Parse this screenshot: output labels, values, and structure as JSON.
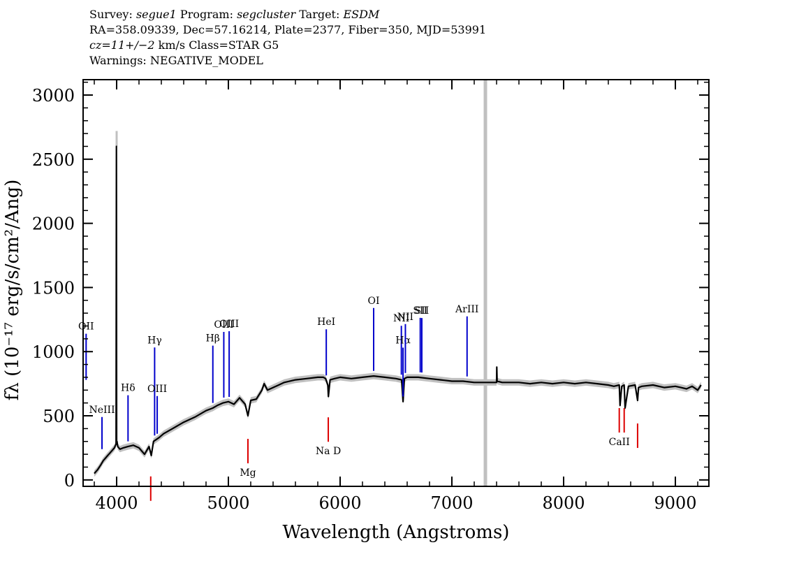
{
  "header": {
    "survey_label": "Survey:",
    "survey_value": "segue1",
    "program_label": "Program:",
    "program_value": "segcluster",
    "target_label": "Target:",
    "target_value": "ESDM",
    "line2": "RA=358.09339, Dec=57.16214, Plate=2377, Fiber=350, MJD=53991",
    "cz_label": "cz=11+/−2",
    "cz_rest": " km/s Class=STAR G5",
    "warnings": "Warnings: NEGATIVE_MODEL"
  },
  "chart_data": {
    "type": "line",
    "title": "",
    "xlabel": "Wavelength (Angstroms)",
    "ylabel": "fλ (10⁻¹⁷ erg/s/cm²/Ang)",
    "xlim": [
      3700,
      9300
    ],
    "ylim": [
      -50,
      3120
    ],
    "x_ticks": [
      4000,
      5000,
      6000,
      7000,
      8000,
      9000
    ],
    "y_ticks": [
      0,
      500,
      1000,
      1500,
      2000,
      2500,
      3000
    ],
    "x_tick_labels": [
      "4000",
      "5000",
      "6000",
      "7000",
      "8000",
      "9000"
    ],
    "y_tick_labels": [
      "0",
      "500",
      "1000",
      "1500",
      "2000",
      "2500",
      "3000"
    ],
    "gap_marker_wavelength": 7300,
    "series": [
      {
        "name": "flux",
        "color": "#000000",
        "x": [
          3800,
          3830,
          3860,
          3880,
          3900,
          3920,
          3940,
          3960,
          3980,
          3995,
          3998,
          4000,
          4003,
          4010,
          4030,
          4060,
          4100,
          4150,
          4200,
          4250,
          4290,
          4310,
          4330,
          4380,
          4420,
          4500,
          4600,
          4700,
          4800,
          4860,
          4900,
          4950,
          5000,
          5050,
          5100,
          5150,
          5175,
          5200,
          5250,
          5300,
          5320,
          5350,
          5400,
          5450,
          5500,
          5600,
          5700,
          5800,
          5850,
          5870,
          5890,
          5895,
          5910,
          5950,
          6000,
          6100,
          6200,
          6300,
          6400,
          6500,
          6550,
          6563,
          6575,
          6600,
          6700,
          6800,
          6900,
          7000,
          7100,
          7200,
          7300,
          7350,
          7400,
          7402,
          7405,
          7450,
          7500,
          7600,
          7700,
          7800,
          7900,
          8000,
          8100,
          8200,
          8300,
          8400,
          8450,
          8498,
          8505,
          8520,
          8542,
          8550,
          8580,
          8640,
          8662,
          8670,
          8700,
          8800,
          8900,
          9000,
          9050,
          9100,
          9150,
          9200,
          9230
        ],
        "y": [
          50,
          80,
          120,
          150,
          170,
          190,
          210,
          230,
          250,
          280,
          2600,
          280,
          300,
          260,
          240,
          250,
          260,
          270,
          250,
          200,
          260,
          190,
          300,
          330,
          360,
          400,
          450,
          490,
          540,
          560,
          580,
          600,
          610,
          590,
          640,
          590,
          500,
          620,
          630,
          700,
          750,
          700,
          720,
          740,
          760,
          780,
          790,
          800,
          800,
          790,
          740,
          650,
          780,
          790,
          800,
          790,
          800,
          810,
          800,
          790,
          780,
          610,
          790,
          800,
          800,
          790,
          780,
          770,
          770,
          760,
          760,
          760,
          760,
          880,
          770,
          760,
          760,
          760,
          750,
          760,
          750,
          760,
          750,
          760,
          750,
          740,
          730,
          740,
          580,
          730,
          740,
          560,
          730,
          740,
          620,
          720,
          730,
          740,
          720,
          730,
          720,
          710,
          730,
          700,
          740
        ]
      },
      {
        "name": "error",
        "color": "#c0c0c0",
        "x": [
          3998,
          4000,
          4002
        ],
        "y": [
          2720,
          2720,
          2720
        ]
      }
    ],
    "emission_lines": [
      {
        "label": "OII",
        "wavelength": 3727
      },
      {
        "label": "NeIII",
        "wavelength": 3869
      },
      {
        "label": "Hδ",
        "wavelength": 4102
      },
      {
        "label": "Hγ",
        "wavelength": 4340
      },
      {
        "label": "OIII",
        "wavelength": 4363
      },
      {
        "label": "Hβ",
        "wavelength": 4861
      },
      {
        "label": "OIII",
        "wavelength": 4959
      },
      {
        "label": "OIII",
        "wavelength": 5007
      },
      {
        "label": "HeI",
        "wavelength": 5876
      },
      {
        "label": "OI",
        "wavelength": 6300
      },
      {
        "label": "NII",
        "wavelength": 6548
      },
      {
        "label": "Hα",
        "wavelength": 6563
      },
      {
        "label": "NII",
        "wavelength": 6584
      },
      {
        "label": "SII",
        "wavelength": 6717
      },
      {
        "label": "SII",
        "wavelength": 6731
      },
      {
        "label": "ArIII",
        "wavelength": 7136
      }
    ],
    "absorption_lines": [
      {
        "label": "",
        "wavelength": 4305
      },
      {
        "label": "Mg",
        "wavelength": 5175
      },
      {
        "label": "Na D",
        "wavelength": 5894
      },
      {
        "label": "CaII",
        "wavelength": 8498
      },
      {
        "label": "",
        "wavelength": 8542
      },
      {
        "label": "",
        "wavelength": 8662
      }
    ],
    "colors": {
      "emission": "#0000cc",
      "absorption": "#dd0000",
      "gap": "#c0c0c0",
      "flux": "#000000",
      "error": "#c0c0c0"
    }
  }
}
